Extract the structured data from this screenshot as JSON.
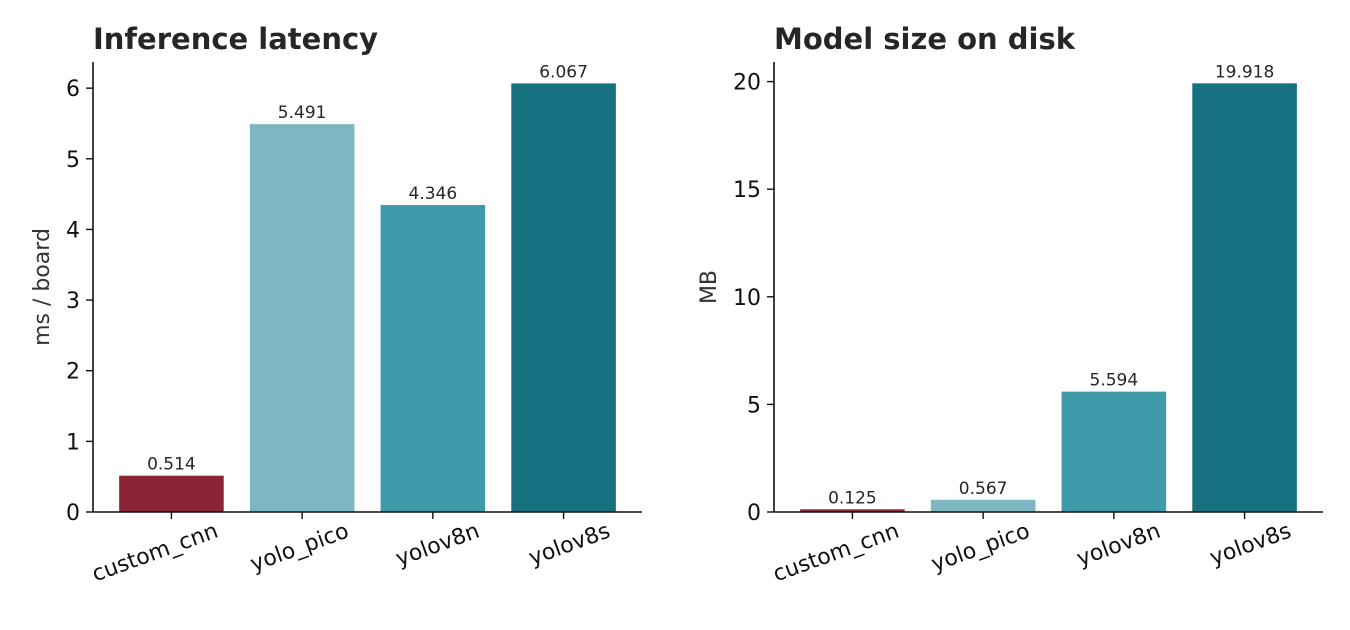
{
  "chart_data": [
    {
      "type": "bar",
      "title": "Inference latency",
      "xlabel": "",
      "ylabel": "ms / board",
      "categories": [
        "custom_cnn",
        "yolo_pico",
        "yolov8n",
        "yolov8s"
      ],
      "values": [
        0.514,
        5.491,
        4.346,
        6.067
      ],
      "value_labels": [
        "0.514",
        "5.491",
        "4.346",
        "6.067"
      ],
      "colors": [
        "#8b2535",
        "#7db7c2",
        "#3f9aaa",
        "#16707e"
      ],
      "ylim": [
        0,
        6.37
      ],
      "yticks": [
        0,
        1,
        2,
        3,
        4,
        5,
        6
      ],
      "grid": false,
      "legend": "none"
    },
    {
      "type": "bar",
      "title": "Model size on disk",
      "xlabel": "",
      "ylabel": "MB",
      "categories": [
        "custom_cnn",
        "yolo_pico",
        "yolov8n",
        "yolov8s"
      ],
      "values": [
        0.125,
        0.567,
        5.594,
        19.918
      ],
      "value_labels": [
        "0.125",
        "0.567",
        "5.594",
        "19.918"
      ],
      "colors": [
        "#8b2535",
        "#7db7c2",
        "#3f9aaa",
        "#16707e"
      ],
      "ylim": [
        0,
        20.91
      ],
      "yticks": [
        0,
        5,
        10,
        15,
        20
      ],
      "grid": false,
      "legend": "none"
    }
  ]
}
